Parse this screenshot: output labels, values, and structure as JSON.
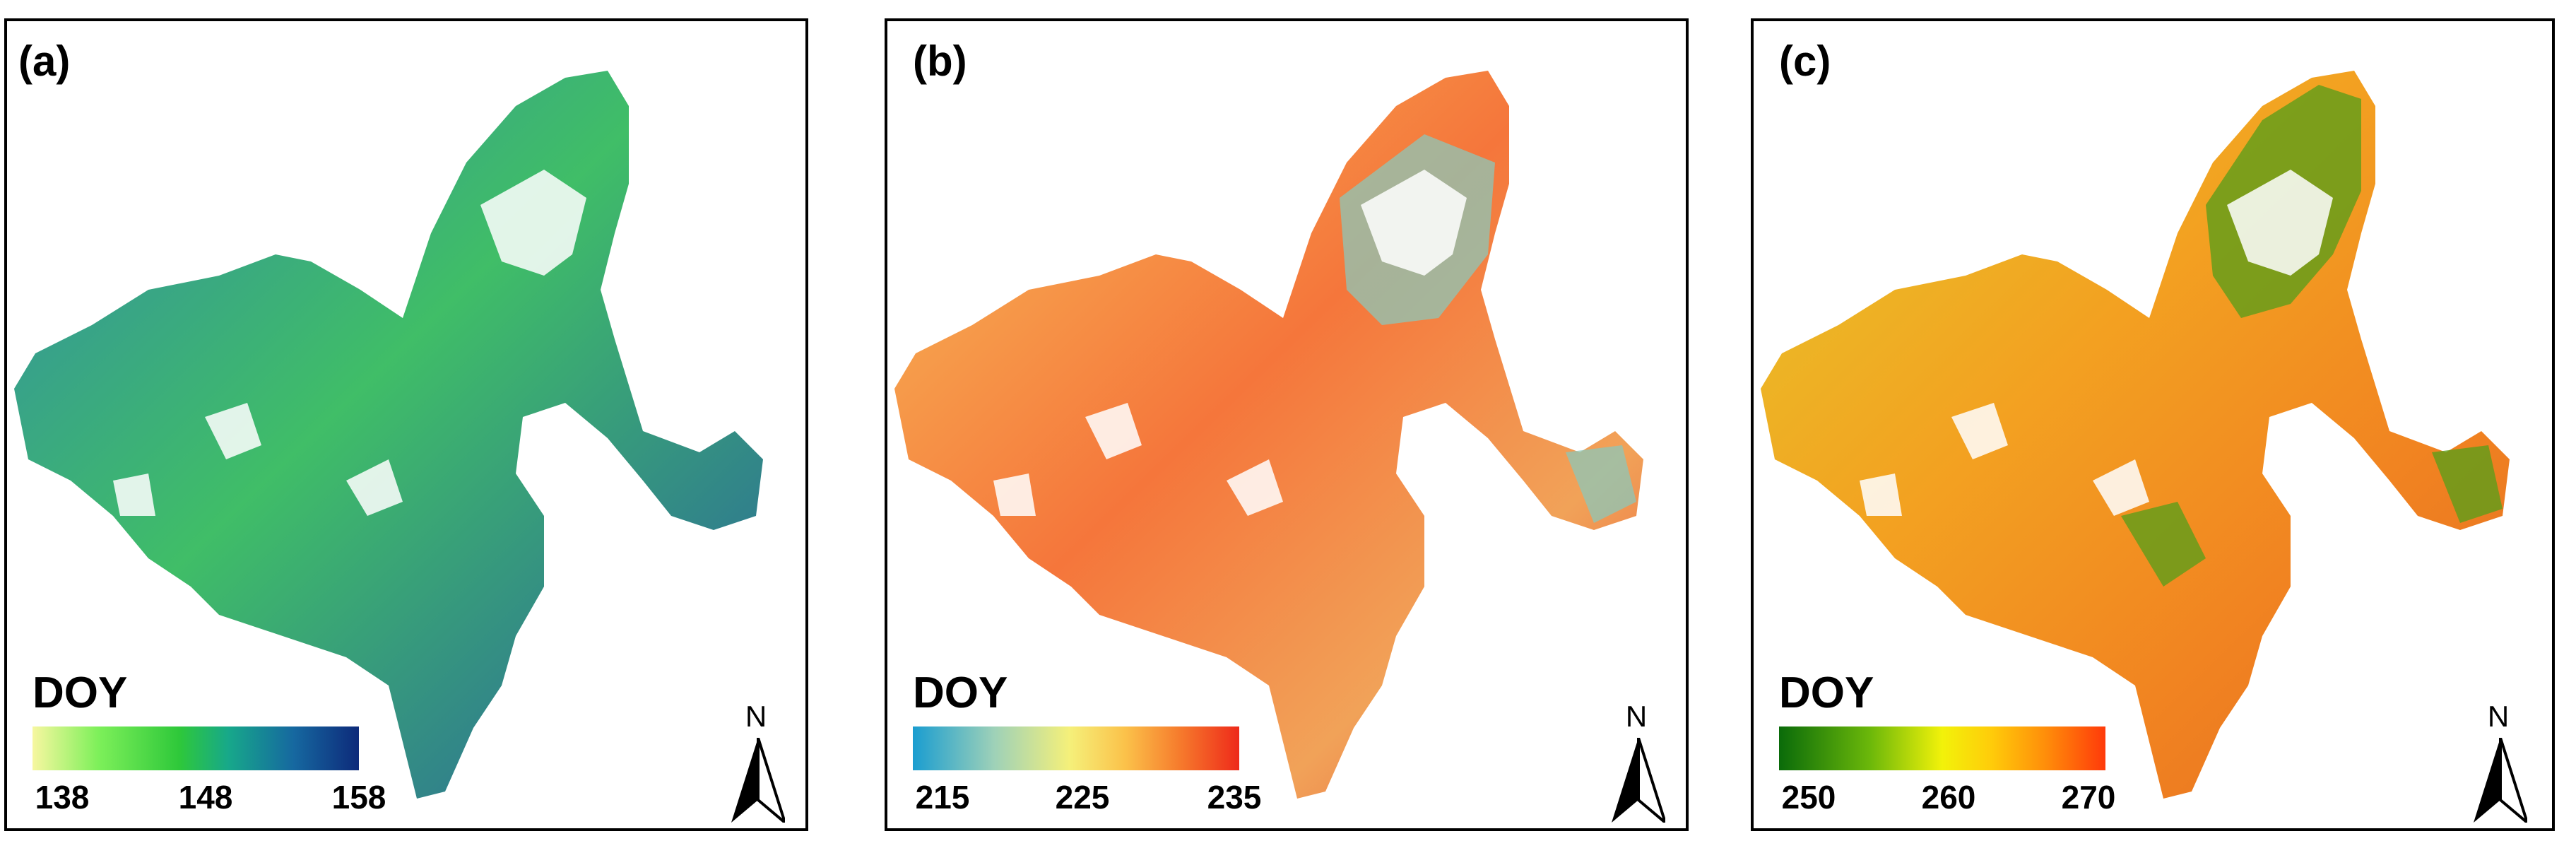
{
  "panels": [
    {
      "label": "(a)",
      "legend_title": "DOY",
      "ticks": [
        "138",
        "148",
        "158"
      ],
      "colors": [
        "#f7f7a0",
        "#7ef05a",
        "#2ec83a",
        "#17a88a",
        "#1668a0",
        "#0d2a7a"
      ],
      "north": "N"
    },
    {
      "label": "(b)",
      "legend_title": "DOY",
      "ticks": [
        "215",
        "225",
        "235"
      ],
      "colors": [
        "#1a9dd0",
        "#9ed1b8",
        "#f5f07a",
        "#fbc24a",
        "#f67a2c",
        "#ee2a1a"
      ],
      "north": "N"
    },
    {
      "label": "(c)",
      "legend_title": "DOY",
      "ticks": [
        "250",
        "260",
        "270"
      ],
      "colors": [
        "#0a6b0a",
        "#6cb80a",
        "#f2f20a",
        "#ffcc0a",
        "#ff8c0a",
        "#ff3a0a"
      ],
      "north": "N"
    }
  ]
}
